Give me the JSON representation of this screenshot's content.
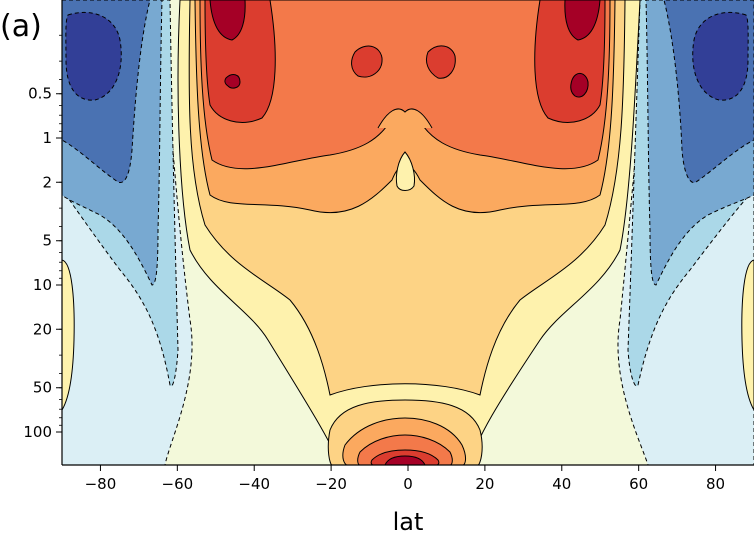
{
  "chart_data": {
    "type": "contour",
    "panel_label": "(a)",
    "xlabel": "lat",
    "ylabel": "",
    "x_ticks": [
      -80,
      -60,
      -40,
      -20,
      0,
      20,
      40,
      60,
      80
    ],
    "x_tick_labels": [
      "−80",
      "−60",
      "−40",
      "−20",
      "0",
      "20",
      "40",
      "60",
      "80"
    ],
    "xlim": [
      -90,
      90
    ],
    "y_scale": "log",
    "y_inverted": true,
    "y_ticks": [
      0.5,
      1,
      2,
      5,
      10,
      20,
      50,
      100
    ],
    "y_tick_labels": [
      "0.5",
      "1",
      "2",
      "5",
      "10",
      "20",
      "50",
      "100"
    ],
    "negative_contours": "dashed",
    "colormap": "RdYlBu_r",
    "colors": {
      "fill_levels": [
        "#323f97",
        "#4a72b2",
        "#78a9d1",
        "#abd8e8",
        "#dbeff5",
        "#f3f9da",
        "#fef2ad",
        "#fdd385",
        "#fba95f",
        "#f3794a",
        "#db3d2f",
        "#a50026"
      ],
      "contour": "#000000"
    }
  }
}
